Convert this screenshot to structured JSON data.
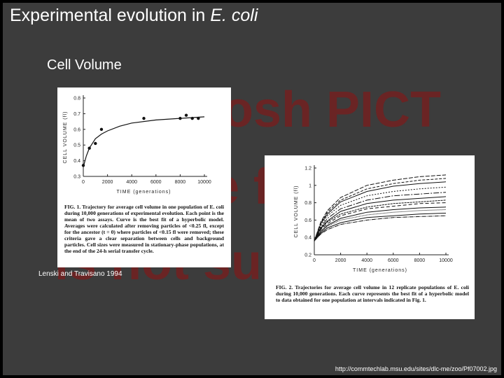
{
  "slide": {
    "title_parts": [
      "Experimental evolution in",
      "E. coli"
    ],
    "subtitle": "Cell Volume",
    "watermark": [
      "Macintosh PICT",
      "image format",
      "is not supported"
    ],
    "credit": "Lenski and Travisano 1994",
    "source": "http://commtechlab.msu.edu/sites/dlc-me/zoo/Pf07002.jpg"
  },
  "chart_data": [
    {
      "type": "scatter",
      "x_label": "TIME (generations)",
      "y_label": "CELL VOLUME (fl)",
      "x": [
        0,
        500,
        1000,
        1500,
        5000,
        8000,
        8500,
        9000,
        9500
      ],
      "values": [
        0.37,
        0.48,
        0.51,
        0.6,
        0.67,
        0.67,
        0.69,
        0.67,
        0.67
      ],
      "fit": {
        "x": [
          0,
          250,
          500,
          1000,
          1500,
          2000,
          3000,
          4000,
          6000,
          8000,
          10000
        ],
        "values": [
          0.36,
          0.43,
          0.48,
          0.54,
          0.57,
          0.59,
          0.62,
          0.64,
          0.66,
          0.67,
          0.68
        ]
      },
      "xlim": [
        0,
        10000
      ],
      "ylim": [
        0.3,
        0.8
      ],
      "xticks": [
        0,
        2000,
        4000,
        6000,
        8000,
        10000
      ],
      "yticks": [
        0.3,
        0.4,
        0.5,
        0.6,
        0.7,
        0.8
      ],
      "caption": "FIG. 1. Trajectory for average cell volume in one population of E. coli during 10,000 generations of experimental evolution. Each point is the mean of two assays. Curve is the best fit of a hyperbolic model. Averages were calculated after removing particles of <0.25 fl, except for the ancestor (t = 0) where particles of <0.15 fl were removed; these criteria gave a clear separation between cells and background particles. Cell sizes were measured in stationary-phase populations, at the end of the 24-h serial transfer cycle."
    },
    {
      "type": "line",
      "x_label": "TIME (generations)",
      "y_label": "CELL VOLUME (fl)",
      "x": [
        0,
        500,
        1000,
        2000,
        4000,
        6000,
        8000,
        10000
      ],
      "series": [
        {
          "values": [
            0.36,
            0.58,
            0.71,
            0.86,
            1.0,
            1.06,
            1.1,
            1.12
          ]
        },
        {
          "values": [
            0.36,
            0.57,
            0.69,
            0.83,
            0.96,
            1.02,
            1.06,
            1.08
          ]
        },
        {
          "values": [
            0.36,
            0.56,
            0.67,
            0.81,
            0.93,
            0.99,
            1.02,
            1.04
          ]
        },
        {
          "values": [
            0.36,
            0.54,
            0.65,
            0.77,
            0.88,
            0.93,
            0.96,
            0.98
          ]
        },
        {
          "values": [
            0.36,
            0.52,
            0.62,
            0.73,
            0.83,
            0.88,
            0.9,
            0.92
          ]
        },
        {
          "values": [
            0.36,
            0.51,
            0.59,
            0.7,
            0.79,
            0.83,
            0.85,
            0.87
          ]
        },
        {
          "values": [
            0.36,
            0.5,
            0.58,
            0.67,
            0.75,
            0.79,
            0.81,
            0.83
          ]
        },
        {
          "values": [
            0.36,
            0.49,
            0.56,
            0.65,
            0.73,
            0.76,
            0.79,
            0.8
          ]
        },
        {
          "values": [
            0.36,
            0.47,
            0.54,
            0.62,
            0.69,
            0.72,
            0.74,
            0.75
          ]
        },
        {
          "values": [
            0.36,
            0.46,
            0.53,
            0.6,
            0.66,
            0.69,
            0.71,
            0.72
          ]
        },
        {
          "values": [
            0.36,
            0.45,
            0.51,
            0.57,
            0.63,
            0.65,
            0.67,
            0.68
          ]
        },
        {
          "values": [
            0.36,
            0.44,
            0.49,
            0.55,
            0.6,
            0.63,
            0.64,
            0.65
          ]
        }
      ],
      "xlim": [
        0,
        10000
      ],
      "ylim": [
        0.2,
        1.2
      ],
      "xticks": [
        0,
        2000,
        4000,
        6000,
        8000,
        10000
      ],
      "yticks": [
        0.2,
        0.4,
        0.6,
        0.8,
        1.0,
        1.2
      ],
      "caption": "FIG. 2. Trajectories for average cell volume in 12 replicate populations of E. coli during 10,000 generations. Each curve represents the best fit of a hyperbolic model to data obtained for one population at intervals indicated in Fig. 1."
    }
  ]
}
